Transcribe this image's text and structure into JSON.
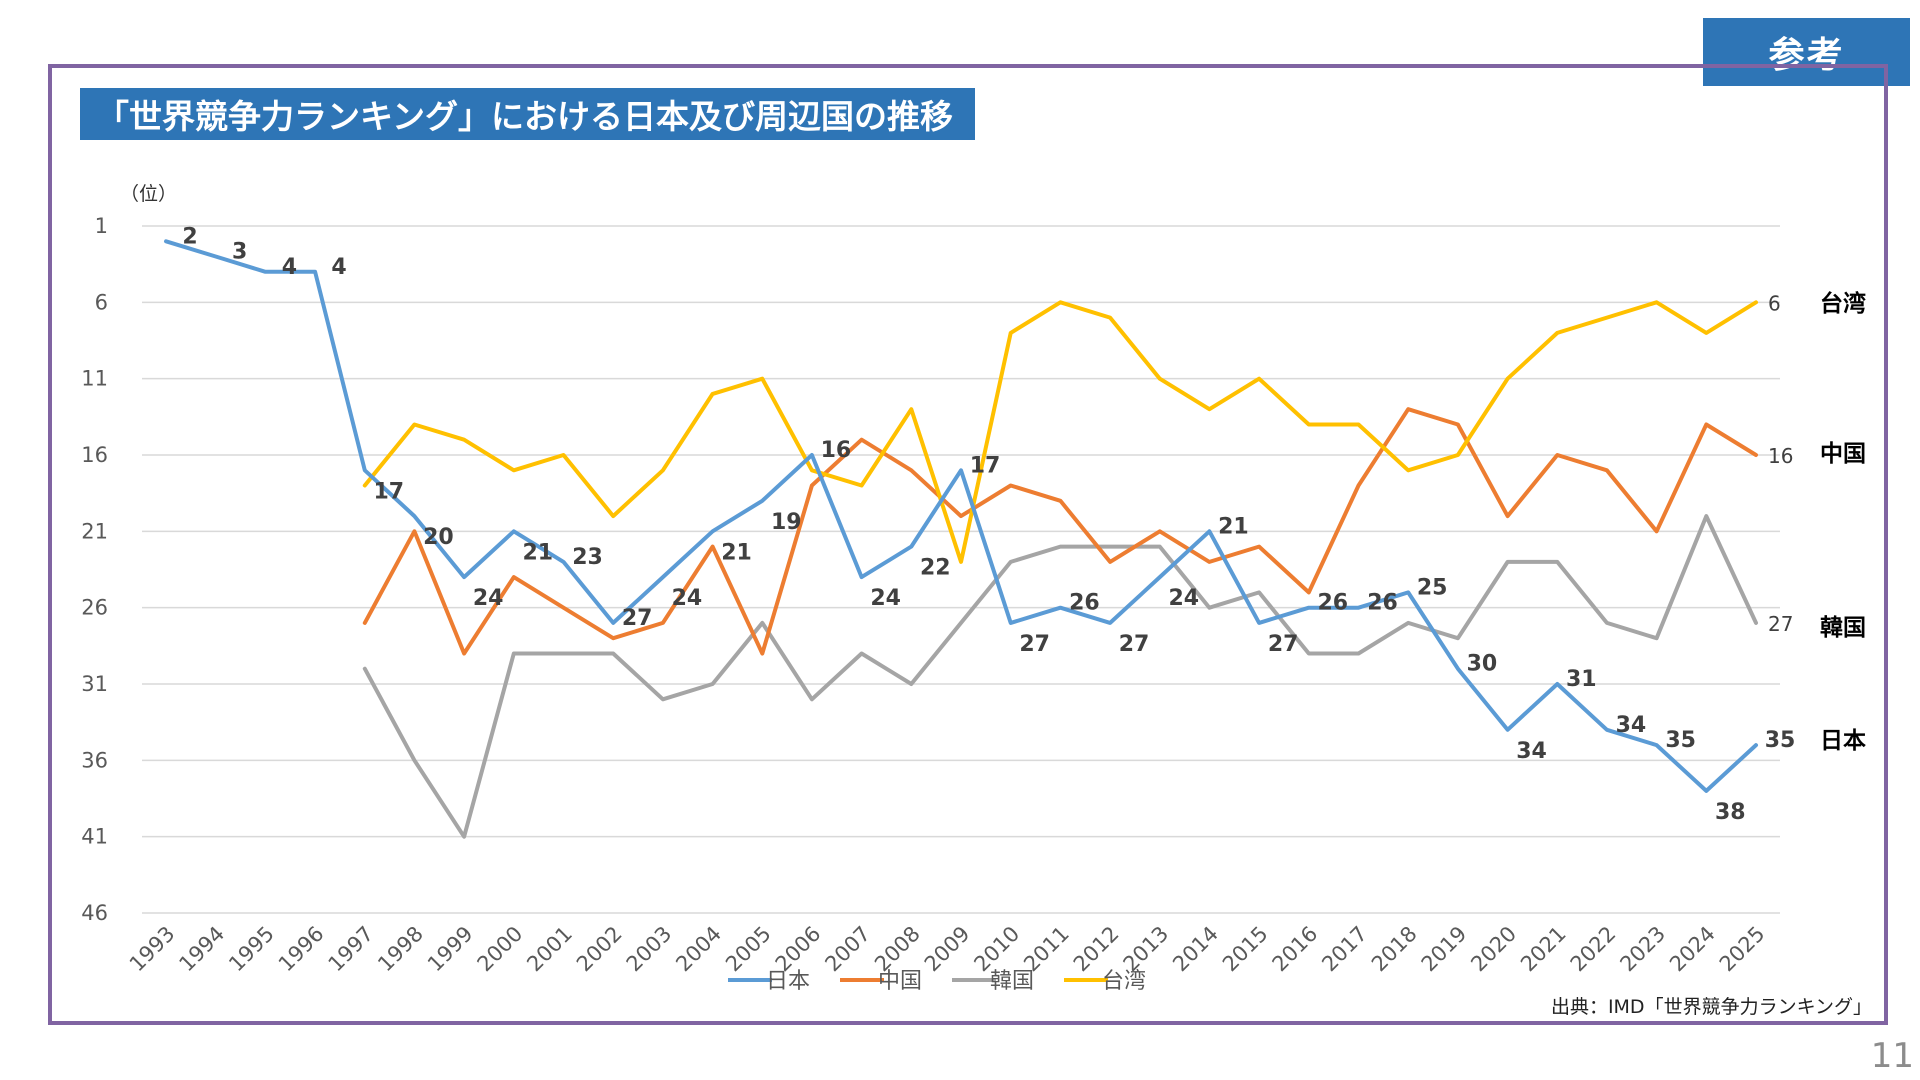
{
  "badge": "参考",
  "title": "「世界競争力ランキング」における日本及び周辺国の推移",
  "source": "出典：IMD「世界競争力ランキング」",
  "page_number": "11",
  "chart_data": {
    "type": "line",
    "ylabel": "（位）",
    "y_inverted": true,
    "ylim": [
      1,
      46
    ],
    "yticks": [
      1,
      6,
      11,
      16,
      21,
      26,
      31,
      36,
      41,
      46
    ],
    "grid": true,
    "legend_position": "bottom",
    "categories": [
      "1993",
      "1994",
      "1995",
      "1996",
      "1997",
      "1998",
      "1999",
      "2000",
      "2001",
      "2002",
      "2003",
      "2004",
      "2005",
      "2006",
      "2007",
      "2008",
      "2009",
      "2010",
      "2011",
      "2012",
      "2013",
      "2014",
      "2015",
      "2016",
      "2017",
      "2018",
      "2019",
      "2020",
      "2021",
      "2022",
      "2023",
      "2024",
      "2025"
    ],
    "series": [
      {
        "name": "日本",
        "end_label": "日本",
        "color": "#5b9bd5",
        "values": [
          2,
          3,
          4,
          4,
          17,
          20,
          24,
          21,
          23,
          27,
          24,
          21,
          19,
          16,
          24,
          22,
          17,
          27,
          26,
          27,
          24,
          21,
          27,
          26,
          26,
          25,
          30,
          34,
          31,
          34,
          35,
          38,
          35
        ],
        "point_labels": [
          "2",
          "3",
          "4",
          "4",
          "17",
          "20",
          "24",
          "21",
          "23",
          "27",
          "24",
          "21",
          "19",
          "16",
          "24",
          "22",
          "17",
          "27",
          "26",
          "27",
          "24",
          "21",
          "27",
          "26",
          "26",
          "25",
          "30",
          "34",
          "31",
          "34",
          "35",
          "38",
          "35"
        ]
      },
      {
        "name": "中国",
        "end_label": "中国",
        "end_value_label": "16",
        "color": "#ed7d31",
        "values": [
          null,
          null,
          null,
          null,
          27,
          21,
          29,
          24,
          26,
          28,
          27,
          22,
          29,
          18,
          15,
          17,
          20,
          18,
          19,
          23,
          21,
          23,
          22,
          25,
          18,
          13,
          14,
          20,
          16,
          17,
          21,
          14,
          16
        ]
      },
      {
        "name": "韓国",
        "end_label": "韓国",
        "end_value_label": "27",
        "color": "#a5a5a5",
        "values": [
          null,
          null,
          null,
          null,
          30,
          36,
          41,
          29,
          29,
          29,
          32,
          31,
          27,
          32,
          29,
          31,
          27,
          23,
          22,
          22,
          22,
          26,
          25,
          29,
          29,
          27,
          28,
          23,
          23,
          27,
          28,
          20,
          27
        ]
      },
      {
        "name": "台湾",
        "end_label": "台湾",
        "end_value_label": "6",
        "color": "#ffc000",
        "values": [
          null,
          null,
          null,
          null,
          18,
          14,
          15,
          17,
          16,
          20,
          17,
          12,
          11,
          17,
          18,
          13,
          23,
          8,
          6,
          7,
          11,
          13,
          11,
          14,
          14,
          17,
          16,
          11,
          8,
          7,
          6,
          8,
          6
        ]
      }
    ]
  }
}
